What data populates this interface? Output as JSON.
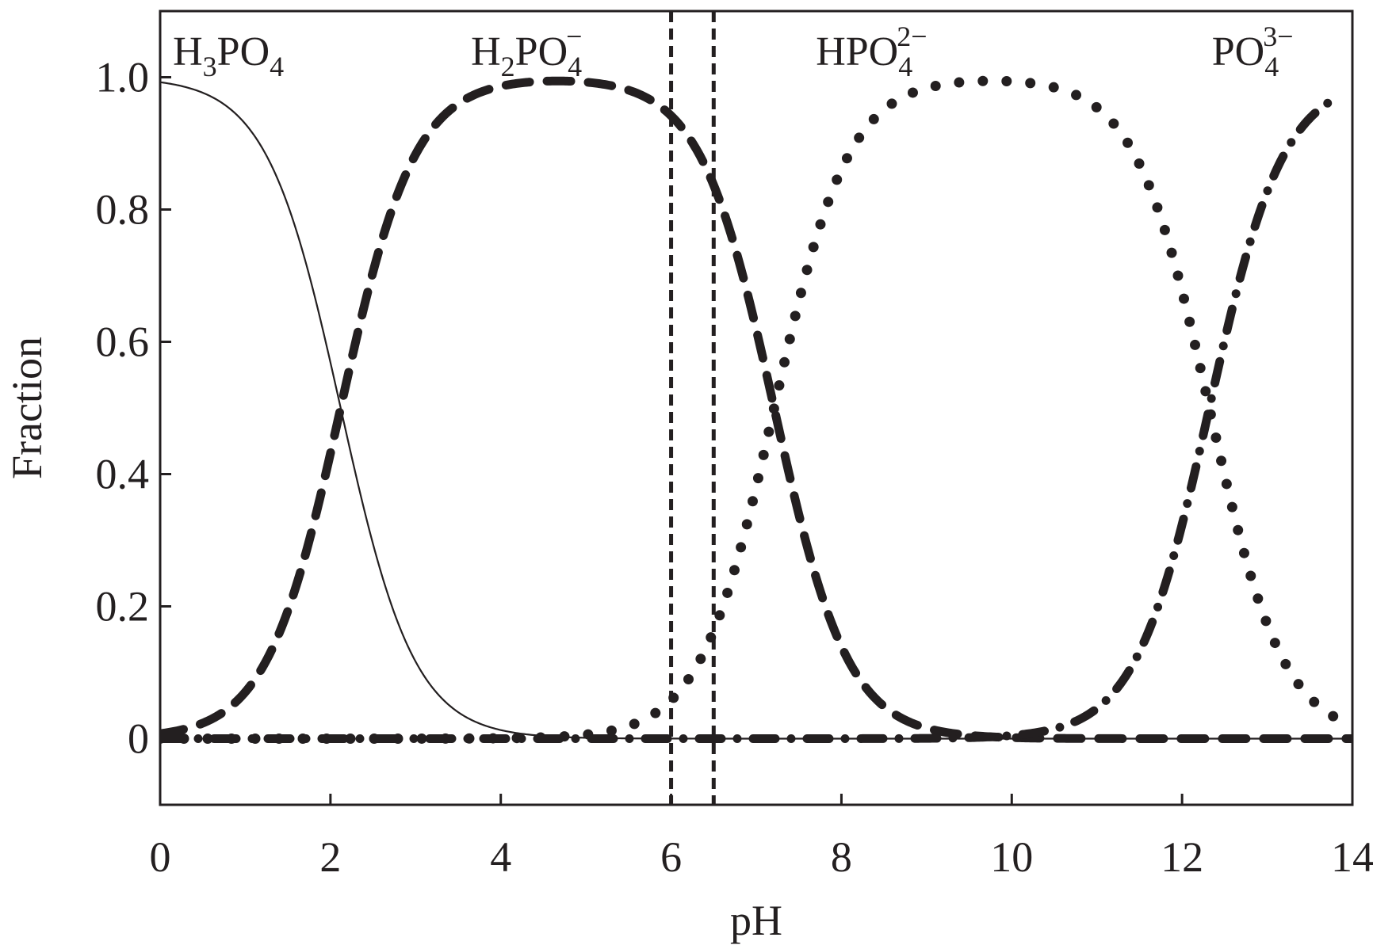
{
  "chart_data": {
    "type": "line",
    "xlabel": "pH",
    "ylabel": "Fraction",
    "xlim": [
      0,
      14
    ],
    "ylim": [
      -0.1,
      1.1
    ],
    "x_ticks": [
      "0",
      "2",
      "4",
      "6",
      "8",
      "10",
      "12",
      "14"
    ],
    "y_ticks": [
      "0",
      "0.2",
      "0.4",
      "0.6",
      "0.8",
      "1.0"
    ],
    "grid": false,
    "pKa": [
      2.12,
      7.21,
      12.32
    ],
    "reference_lines_ph": [
      6.0,
      6.5
    ],
    "species": [
      {
        "base": "H",
        "sub1": "3",
        "mid": "PO",
        "sub2": "4",
        "sup": "",
        "style": "solid",
        "label_x_ph": 0.15
      },
      {
        "base": "H",
        "sub1": "2",
        "mid": "PO",
        "sub2": "4",
        "sup": "−",
        "style": "dashed",
        "label_x_ph": 3.65
      },
      {
        "base": "",
        "sub1": "",
        "mid": "HPO",
        "sub2": "4",
        "sup": "2−",
        "style": "dotted",
        "label_x_ph": 7.7
      },
      {
        "base": "",
        "sub1": "",
        "mid": "PO",
        "sub2": "4",
        "sup": "3−",
        "style": "dash-dot",
        "label_x_ph": 12.35
      }
    ],
    "series": [
      {
        "x": [
          0,
          0.5,
          1,
          1.5,
          2,
          2.12,
          2.5,
          3,
          3.5,
          4,
          5,
          6,
          7,
          8,
          10,
          12,
          14
        ],
        "y": [
          0.99,
          0.97,
          0.93,
          0.79,
          0.57,
          0.5,
          0.29,
          0.12,
          0.04,
          0.013,
          0.001,
          0,
          0,
          0,
          0,
          0,
          0
        ]
      },
      {
        "x": [
          0,
          0.5,
          1,
          1.5,
          2,
          2.12,
          2.5,
          3,
          3.5,
          4,
          5,
          6,
          6.5,
          7,
          7.21,
          7.5,
          8,
          8.5,
          9,
          10,
          11,
          12,
          14
        ],
        "y": [
          0.008,
          0.023,
          0.07,
          0.19,
          0.43,
          0.5,
          0.7,
          0.88,
          0.96,
          0.98,
          0.99,
          0.94,
          0.84,
          0.62,
          0.5,
          0.34,
          0.14,
          0.05,
          0.016,
          0.002,
          0,
          0,
          0
        ]
      },
      {
        "x": [
          0,
          1,
          2,
          3,
          4,
          4.5,
          5,
          5.5,
          6,
          6.5,
          7,
          7.21,
          7.5,
          8,
          8.5,
          9,
          10,
          11,
          11.5,
          12,
          12.32,
          12.5,
          13,
          13.5,
          13.8
        ],
        "y": [
          0,
          0,
          0,
          0,
          0.001,
          0.002,
          0.006,
          0.02,
          0.06,
          0.16,
          0.38,
          0.5,
          0.66,
          0.86,
          0.95,
          0.98,
          0.99,
          0.96,
          0.87,
          0.68,
          0.5,
          0.4,
          0.17,
          0.06,
          0.03
        ]
      },
      {
        "x": [
          0,
          4,
          6.9,
          9,
          10,
          10.5,
          11,
          11.5,
          12,
          12.32,
          12.5,
          13,
          13.5,
          13.8
        ],
        "y": [
          0,
          0,
          0,
          0,
          0.002,
          0.006,
          0.02,
          0.13,
          0.32,
          0.5,
          0.6,
          0.83,
          0.94,
          0.97
        ]
      }
    ]
  }
}
